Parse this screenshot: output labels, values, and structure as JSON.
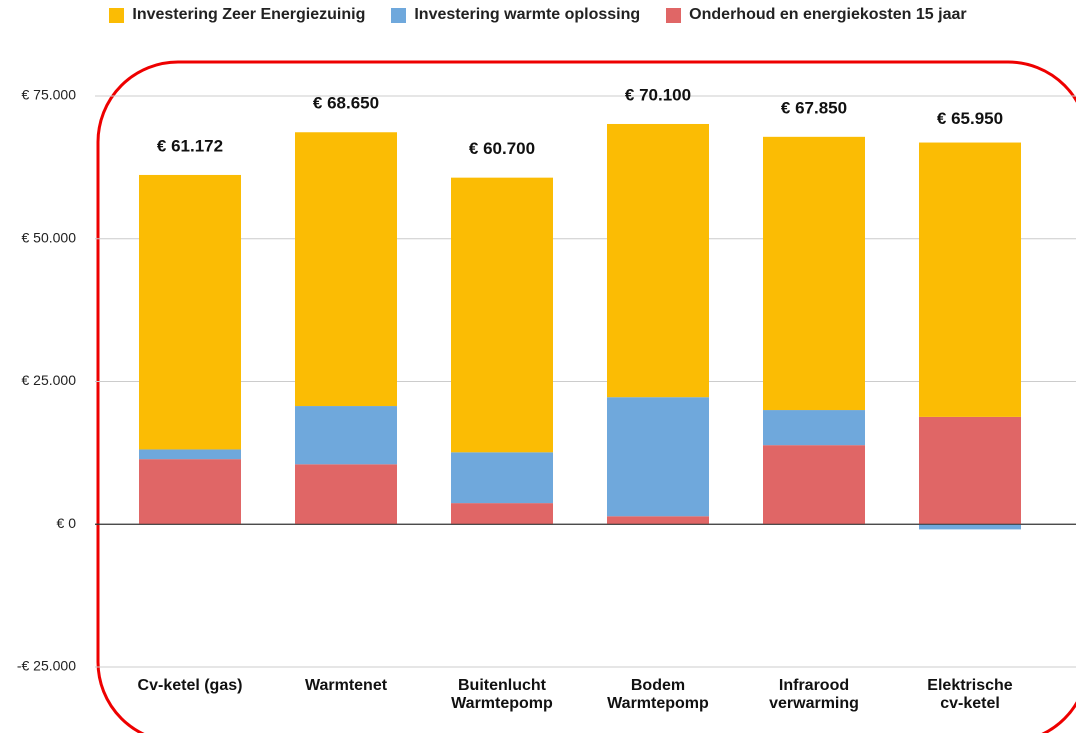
{
  "chart_data": {
    "type": "stacked_bar",
    "categories": [
      "Cv-ketel (gas)",
      "Warmtenet",
      "Buitenlucht\nWarmtepomp",
      "Bodem\nWarmtepomp",
      "Infrarood\nverwarming",
      "Elektrische\ncv-ketel"
    ],
    "series": [
      {
        "name": "Onderhoud en energiekosten 15 jaar",
        "color": "#e06666",
        "values": [
          11400,
          10500,
          3700,
          1400,
          13850,
          18800
        ]
      },
      {
        "name": "Investering warmte oplossing",
        "color": "#6fa8dc",
        "values": [
          1700,
          10200,
          8900,
          20850,
          6150,
          -900
        ]
      },
      {
        "name": "Investering Zeer Energiezuinig",
        "color": "#fbbc04",
        "values": [
          48072,
          47950,
          48100,
          47850,
          47850,
          48050
        ]
      }
    ],
    "legend_order": [
      2,
      1,
      0
    ],
    "totals": {
      "values": [
        61172,
        68650,
        60700,
        70100,
        67850,
        65950
      ],
      "value_labels": [
        "€ 61.172",
        "€ 68.650",
        "€ 60.700",
        "€ 70.100",
        "€ 67.850",
        "€ 65.950"
      ]
    },
    "ylim": [
      -25000,
      75000
    ],
    "yticks": [
      {
        "value": -25000,
        "label": "-€ 25.000"
      },
      {
        "value": 0,
        "label": "€ 0"
      },
      {
        "value": 25000,
        "label": "€ 25.000"
      },
      {
        "value": 50000,
        "label": "€ 50.000"
      },
      {
        "value": 75000,
        "label": "€ 75.000"
      }
    ],
    "grid": true
  }
}
